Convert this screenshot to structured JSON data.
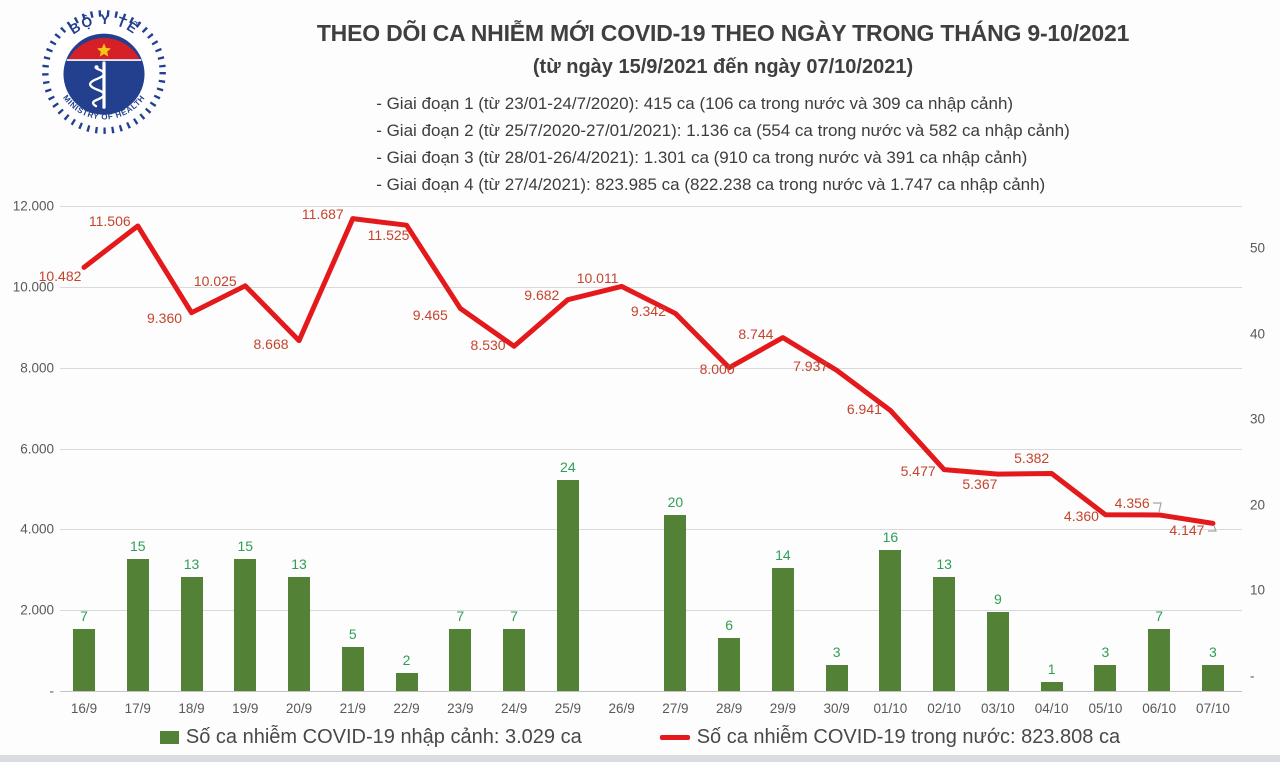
{
  "header": {
    "logo": {
      "top_text": "BỘ Y TẾ",
      "bottom_text": "MINISTRY OF HEALTH"
    },
    "title": "THEO DÕI CA NHIỄM MỚI COVID-19 THEO NGÀY TRONG THÁNG 9-10/2021",
    "subtitle": "(từ ngày 15/9/2021 đến ngày 07/10/2021)",
    "notes": [
      "- Giai đoạn 1 (từ 23/01-24/7/2020): 415 ca (106 ca trong nước và 309 ca nhập cảnh)",
      "- Giai đoạn 2 (từ 25/7/2020-27/01/2021): 1.136 ca (554 ca trong nước và 582 ca nhập cảnh)",
      "- Giai đoạn 3 (từ 28/01-26/4/2021): 1.301 ca (910 ca trong nước và 391 ca nhập cảnh)",
      "- Giai đoạn 4 (từ 27/4/2021): 823.985 ca (822.238 ca trong nước và 1.747 ca nhập cảnh)"
    ]
  },
  "chart_data": {
    "type": "bar+line combo",
    "title": "THEO DÕI CA NHIỄM MỚI COVID-19 THEO NGÀY TRONG THÁNG 9-10/2021",
    "categories": [
      "16/9",
      "17/9",
      "18/9",
      "19/9",
      "20/9",
      "21/9",
      "22/9",
      "23/9",
      "24/9",
      "25/9",
      "26/9",
      "27/9",
      "28/9",
      "29/9",
      "30/9",
      "01/10",
      "02/10",
      "03/10",
      "04/10",
      "05/10",
      "06/10",
      "07/10"
    ],
    "series": [
      {
        "name": "Số ca nhiễm COVID-19 nhập cảnh",
        "type": "bar",
        "axis": "right",
        "values": [
          7,
          15,
          13,
          15,
          13,
          5,
          2,
          7,
          7,
          24,
          0,
          20,
          6,
          14,
          3,
          16,
          13,
          9,
          1,
          3,
          7,
          3
        ],
        "labels": [
          "7",
          "15",
          "13",
          "15",
          "13",
          "5",
          "2",
          "7",
          "7",
          "24",
          "",
          "20",
          "6",
          "14",
          "3",
          "16",
          "13",
          "9",
          "1",
          "3",
          "7",
          "3"
        ]
      },
      {
        "name": "Số ca nhiễm COVID-19 trong nước",
        "type": "line",
        "axis": "left",
        "values": [
          10482,
          11506,
          9360,
          10025,
          8668,
          11687,
          11525,
          9465,
          8530,
          9682,
          10011,
          9342,
          8000,
          8744,
          7937,
          6941,
          5477,
          5367,
          5382,
          4360,
          4356,
          4147
        ],
        "labels": [
          "10.482",
          "11.506",
          "9.360",
          "10.025",
          "8.668",
          "11.687",
          "11.525",
          "9.465",
          "8.530",
          "9.682",
          "10.011",
          "9.342",
          "8.000",
          "8.744",
          "7.937",
          "6.941",
          "5.477",
          "5.367",
          "5.382",
          "4.360",
          "4.356",
          "4.147"
        ]
      }
    ],
    "left_axis": {
      "tick_labels": [
        "12.000",
        "10.000",
        "8.000",
        "6.000",
        "4.000",
        "2.000",
        "-"
      ],
      "tick_values": [
        12000,
        10000,
        8000,
        6000,
        4000,
        2000,
        0
      ],
      "min": 0,
      "max": 12000
    },
    "right_axis": {
      "tick_labels": [
        "50",
        "40",
        "30",
        "20",
        "10",
        "-"
      ],
      "tick_values": [
        50,
        40,
        30,
        20,
        10,
        0
      ],
      "min": 0,
      "max": 50
    },
    "grid": "horizontal-only",
    "legend_position": "bottom"
  },
  "legend": {
    "bar_label": "Số ca nhiễm COVID-19 nhập cảnh: 3.029 ca",
    "line_label": "Số ca nhiễm COVID-19 trong nước: 823.808 ca"
  },
  "colors": {
    "bar": "#538135",
    "bar_label": "#2f9e55",
    "line": "#e4191c",
    "line_label": "#c5442e",
    "axis_text": "#595959",
    "grid": "#d9d9d9",
    "logo_blue": "#23408f",
    "logo_red": "#d61f26",
    "logo_star": "#f5c518"
  }
}
